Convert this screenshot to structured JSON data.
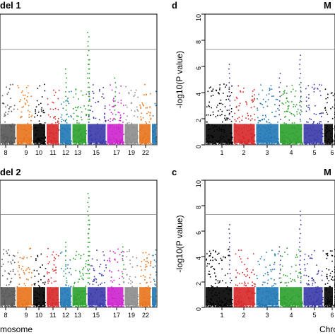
{
  "panels": [
    {
      "id": "top-left",
      "title": "del 1",
      "letter": "",
      "xlabel": "",
      "ylabel": "",
      "chart_data": {
        "type": "scatter",
        "xlim": [
          0,
          22
        ],
        "ylim": [
          0,
          10
        ],
        "threshold": 7.3,
        "categories": [
          "8",
          "9",
          "10",
          "11",
          "12",
          "13",
          "15",
          "17",
          "19",
          "22"
        ],
        "tick_labels_x": [
          "8",
          "9",
          "10",
          "11",
          "12",
          "13",
          "15",
          "17",
          "19",
          "22"
        ],
        "tick_labels_y": [],
        "chrom_colors": [
          "#555555",
          "#e8731b",
          "#000000",
          "#d62728",
          "#1f77b4",
          "#2ca02c",
          "#3a3aa8",
          "#cc22cc",
          "#8c8c8c",
          "#e8731b",
          "#1f77b4"
        ],
        "peaks": [
          {
            "x": 12.3,
            "value": 8.7
          },
          {
            "x": 12.4,
            "value": 6.8
          },
          {
            "x": 9.2,
            "value": 5.9
          },
          {
            "x": 16.1,
            "value": 5.2
          }
        ]
      }
    },
    {
      "id": "top-right",
      "title": "M",
      "letter": "d",
      "xlabel": "",
      "ylabel": "-log10(P value)",
      "chart_data": {
        "type": "scatter",
        "xlim": [
          0,
          7
        ],
        "ylim": [
          0,
          10
        ],
        "threshold": 7.3,
        "tick_labels_x": [
          "1",
          "2",
          "3",
          "4",
          "5",
          "6"
        ],
        "tick_labels_y": [
          "0",
          "2",
          "4",
          "6",
          "8",
          "10"
        ],
        "chrom_colors": [
          "#000000",
          "#d62728",
          "#1f77b4",
          "#2ca02c",
          "#3a3aa8",
          "#000000"
        ],
        "peaks": [
          {
            "x": 1.3,
            "value": 6.5
          },
          {
            "x": 4.0,
            "value": 5.7
          },
          {
            "x": 5.1,
            "value": 7.0
          }
        ]
      }
    },
    {
      "id": "bottom-left",
      "title": "del 2",
      "letter": "",
      "xlabel": "mosome",
      "ylabel": "",
      "chart_data": {
        "type": "scatter",
        "xlim": [
          0,
          22
        ],
        "ylim": [
          0,
          10
        ],
        "threshold": 7.3,
        "tick_labels_x": [
          "8",
          "9",
          "10",
          "11",
          "12",
          "13",
          "15",
          "17",
          "19",
          "22"
        ],
        "tick_labels_y": [],
        "chrom_colors": [
          "#555555",
          "#e8731b",
          "#000000",
          "#d62728",
          "#1f77b4",
          "#2ca02c",
          "#3a3aa8",
          "#cc22cc",
          "#8c8c8c",
          "#e8731b",
          "#1f77b4"
        ],
        "peaks": [
          {
            "x": 12.3,
            "value": 9.0
          },
          {
            "x": 12.4,
            "value": 7.0
          },
          {
            "x": 9.2,
            "value": 5.4
          },
          {
            "x": 17.2,
            "value": 5.0
          }
        ]
      }
    },
    {
      "id": "bottom-right",
      "title": "M",
      "letter": "c",
      "xlabel": "Chro",
      "ylabel": "-log10(P value)",
      "chart_data": {
        "type": "scatter",
        "xlim": [
          0,
          7
        ],
        "ylim": [
          0,
          10
        ],
        "threshold": 7.3,
        "tick_labels_x": [
          "1",
          "2",
          "3",
          "4",
          "5",
          "6"
        ],
        "tick_labels_y": [
          "0",
          "2",
          "4",
          "6",
          "8",
          "10"
        ],
        "chrom_colors": [
          "#000000",
          "#d62728",
          "#1f77b4",
          "#2ca02c",
          "#3a3aa8",
          "#000000"
        ],
        "peaks": [
          {
            "x": 1.3,
            "value": 6.8
          },
          {
            "x": 4.0,
            "value": 5.1
          },
          {
            "x": 5.1,
            "value": 7.8
          }
        ]
      }
    }
  ]
}
